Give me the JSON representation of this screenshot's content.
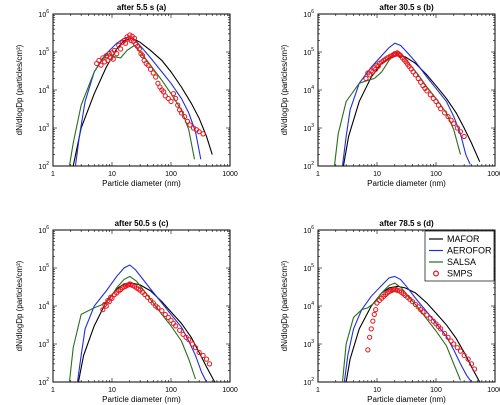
{
  "figure": {
    "xlabel": "Particle diameter (nm)",
    "ylabel": "dN/dlogDp (particles/cm³)",
    "xlim": [
      1,
      1000
    ],
    "ylim": [
      100,
      1000000
    ],
    "x_scale": "log",
    "y_scale": "log",
    "x_ticks": [
      1,
      10,
      100,
      1000
    ],
    "y_ticks": [
      2,
      3,
      4,
      5,
      6
    ],
    "colors": {
      "MAFOR": "#000000",
      "AEROFOR": "#1f2fd6",
      "SALSA": "#2a6e1e",
      "SMPS": "#e8141c"
    },
    "legend": {
      "placement": "top-right of panel (d)",
      "entries": [
        {
          "name": "MAFOR",
          "style": "line",
          "color": "#000000"
        },
        {
          "name": "AEROFOR",
          "style": "line",
          "color": "#1f2fd6"
        },
        {
          "name": "SALSA",
          "style": "line",
          "color": "#2a6e1e"
        },
        {
          "name": "SMPS",
          "style": "marker",
          "color": "#e8141c"
        }
      ]
    }
  },
  "chart_data": [
    {
      "type": "line",
      "title": "after 5.5 s (a)",
      "series": [
        {
          "name": "MAFOR",
          "x": [
            2.2,
            3,
            5,
            8,
            12,
            16,
            22,
            30,
            45,
            70,
            100,
            150,
            220,
            300,
            400,
            500
          ],
          "y": [
            100,
            1000,
            8000,
            40000,
            120000,
            200000,
            230000,
            180000,
            110000,
            60000,
            30000,
            12000,
            4500,
            1800,
            600,
            200
          ]
        },
        {
          "name": "AEROFOR",
          "x": [
            2.4,
            2.8,
            3.5,
            5,
            8,
            12,
            16,
            20,
            25,
            32,
            45,
            70,
            100,
            150,
            200,
            260,
            320
          ],
          "y": [
            100,
            600,
            5000,
            30000,
            90000,
            170000,
            230000,
            250000,
            200000,
            130000,
            70000,
            30000,
            15000,
            6000,
            2500,
            800,
            150
          ]
        },
        {
          "name": "SALSA",
          "x": [
            1.9,
            2.2,
            3,
            5,
            7,
            9,
            11,
            14,
            18,
            24,
            32,
            45,
            70,
            100,
            150,
            200,
            250
          ],
          "y": [
            100,
            400,
            4000,
            30000,
            70000,
            90000,
            75000,
            70000,
            110000,
            150000,
            90000,
            45000,
            18000,
            8000,
            3000,
            900,
            150
          ]
        },
        {
          "name": "SMPS",
          "x": [
            5.5,
            6,
            6.5,
            7,
            7.5,
            8,
            8.5,
            9,
            9.5,
            10,
            10.5,
            11,
            12,
            13,
            14,
            15,
            16,
            17,
            18,
            19,
            20,
            21,
            22,
            23,
            24,
            25,
            27,
            29,
            31,
            33,
            35,
            38,
            41,
            45,
            50,
            55,
            60,
            65,
            70,
            75,
            80,
            90,
            100,
            110,
            120,
            130,
            140,
            150,
            170,
            190,
            210,
            240,
            270,
            300,
            350
          ],
          "y": [
            50000,
            60000,
            45000,
            70000,
            55000,
            80000,
            60000,
            90000,
            70000,
            95000,
            65000,
            110000,
            90000,
            150000,
            120000,
            180000,
            200000,
            170000,
            250000,
            220000,
            280000,
            200000,
            260000,
            190000,
            230000,
            160000,
            140000,
            120000,
            90000,
            80000,
            60000,
            50000,
            45000,
            35000,
            28000,
            22000,
            15000,
            12000,
            10000,
            9000,
            7000,
            6000,
            5000,
            8000,
            6000,
            4000,
            3000,
            2500,
            2000,
            1500,
            1200,
            1000,
            900,
            800,
            700
          ]
        }
      ]
    },
    {
      "type": "line",
      "title": "after 30.5 s (b)",
      "series": [
        {
          "name": "MAFOR",
          "x": [
            2.7,
            3.3,
            5,
            8,
            12,
            16,
            22,
            30,
            45,
            70,
            100,
            150,
            220,
            300,
            400,
            550
          ],
          "y": [
            100,
            600,
            5000,
            22000,
            50000,
            70000,
            80000,
            75000,
            50000,
            25000,
            13000,
            6000,
            2500,
            1000,
            400,
            130
          ]
        },
        {
          "name": "AEROFOR",
          "x": [
            2.6,
            3,
            3.5,
            5,
            8,
            12,
            16,
            20,
            25,
            32,
            45,
            70,
            100,
            150,
            200,
            260,
            320,
            380
          ],
          "y": [
            100,
            600,
            3000,
            15000,
            40000,
            80000,
            130000,
            170000,
            150000,
            100000,
            55000,
            22000,
            11000,
            5000,
            2000,
            700,
            200,
            110
          ]
        },
        {
          "name": "SALSA",
          "x": [
            1.9,
            2.2,
            3,
            5,
            7,
            9,
            12,
            16,
            20,
            26,
            35,
            50,
            70,
            100,
            150,
            200,
            260
          ],
          "y": [
            100,
            700,
            5000,
            15000,
            18000,
            20000,
            30000,
            60000,
            100000,
            90000,
            50000,
            25000,
            12000,
            6000,
            2500,
            900,
            200
          ]
        },
        {
          "name": "SMPS",
          "x": [
            6.5,
            7,
            7.5,
            8,
            8.5,
            9,
            9.5,
            10,
            10.5,
            11,
            12,
            13,
            14,
            15,
            16,
            17,
            18,
            19,
            20,
            21,
            22,
            23,
            24,
            25,
            27,
            29,
            31,
            33,
            35,
            38,
            41,
            45,
            50,
            55,
            60,
            65,
            70,
            80,
            90,
            100,
            110,
            120,
            140,
            160,
            180,
            200,
            230,
            260,
            300
          ],
          "y": [
            20000,
            28000,
            25000,
            32000,
            30000,
            38000,
            35000,
            45000,
            42000,
            50000,
            55000,
            60000,
            65000,
            70000,
            72000,
            78000,
            80000,
            85000,
            90000,
            88000,
            95000,
            90000,
            85000,
            80000,
            70000,
            62000,
            55000,
            48000,
            42000,
            36000,
            30000,
            25000,
            20000,
            16000,
            13000,
            11000,
            9500,
            7500,
            6000,
            5000,
            4000,
            3200,
            2500,
            2000,
            1600,
            1300,
            1000,
            800,
            600
          ]
        }
      ]
    },
    {
      "type": "line",
      "title": "after 50.5 s (c)",
      "series": [
        {
          "name": "MAFOR",
          "x": [
            2.7,
            3.3,
            5,
            8,
            12,
            16,
            22,
            30,
            45,
            70,
            100,
            150,
            220,
            300,
            400,
            550
          ],
          "y": [
            100,
            500,
            3000,
            13000,
            28000,
            38000,
            40000,
            36000,
            25000,
            13000,
            7000,
            3500,
            1500,
            600,
            250,
            100
          ]
        },
        {
          "name": "AEROFOR",
          "x": [
            2.6,
            3,
            3.5,
            5,
            8,
            12,
            16,
            20,
            25,
            32,
            45,
            70,
            100,
            150,
            200,
            260,
            330,
            400
          ],
          "y": [
            100,
            500,
            2500,
            10000,
            25000,
            60000,
            100000,
            120000,
            90000,
            55000,
            28000,
            12000,
            6000,
            2800,
            1200,
            500,
            180,
            100
          ]
        },
        {
          "name": "SALSA",
          "x": [
            1.9,
            2.2,
            3,
            5,
            7,
            9,
            12,
            16,
            20,
            26,
            35,
            50,
            70,
            100,
            150,
            200,
            260
          ],
          "y": [
            100,
            800,
            6000,
            9000,
            11000,
            15000,
            30000,
            50000,
            60000,
            45000,
            25000,
            12000,
            6000,
            3000,
            1200,
            400,
            120
          ]
        },
        {
          "name": "SMPS",
          "x": [
            7,
            7.5,
            8,
            8.5,
            9,
            9.5,
            10,
            11,
            12,
            13,
            14,
            15,
            16,
            17,
            18,
            19,
            20,
            21,
            22,
            24,
            26,
            28,
            30,
            33,
            36,
            40,
            45,
            50,
            55,
            60,
            70,
            80,
            90,
            100,
            110,
            120,
            140,
            160,
            180,
            200,
            230,
            260,
            300,
            350,
            400,
            450
          ],
          "y": [
            8000,
            11000,
            10000,
            14000,
            13000,
            17000,
            16000,
            20000,
            22000,
            25000,
            27000,
            30000,
            32000,
            33000,
            35000,
            36000,
            38000,
            37000,
            35000,
            33000,
            30000,
            28000,
            26000,
            23000,
            20000,
            17000,
            14000,
            12000,
            10000,
            9000,
            7500,
            6000,
            5000,
            4200,
            3500,
            3000,
            2300,
            1800,
            1500,
            1300,
            1000,
            800,
            600,
            500,
            400,
            300
          ]
        }
      ]
    },
    {
      "type": "line",
      "title": "after 78.5 s (d)",
      "series": [
        {
          "name": "MAFOR",
          "x": [
            3,
            3.5,
            5,
            8,
            12,
            16,
            22,
            30,
            45,
            70,
            100,
            150,
            220,
            300,
            400,
            550
          ],
          "y": [
            100,
            400,
            2500,
            10000,
            22000,
            30000,
            33000,
            30000,
            22000,
            12000,
            6500,
            3200,
            1400,
            600,
            250,
            100
          ]
        },
        {
          "name": "AEROFOR",
          "x": [
            2.8,
            3.2,
            4,
            5.5,
            8,
            12,
            16,
            20,
            25,
            32,
            45,
            70,
            100,
            150,
            200,
            260,
            330,
            400
          ],
          "y": [
            100,
            500,
            2500,
            8000,
            18000,
            35000,
            55000,
            60000,
            50000,
            32000,
            16000,
            7000,
            3500,
            1600,
            700,
            300,
            150,
            100
          ]
        },
        {
          "name": "SALSA",
          "x": [
            2.6,
            3,
            4,
            5.5,
            7,
            9,
            12,
            16,
            20,
            26,
            35,
            50,
            70,
            100,
            150,
            200,
            260
          ],
          "y": [
            100,
            1000,
            5000,
            8000,
            9000,
            12000,
            22000,
            35000,
            40000,
            30000,
            17000,
            9000,
            4500,
            2200,
            900,
            300,
            110
          ]
        },
        {
          "name": "SMPS",
          "x": [
            7,
            7.5,
            8,
            8.5,
            9,
            9.5,
            10,
            11,
            12,
            13,
            14,
            15,
            16,
            17,
            18,
            19,
            20,
            21,
            22,
            24,
            26,
            28,
            30,
            33,
            36,
            40,
            45,
            50,
            55,
            60,
            70,
            80,
            90,
            100,
            110,
            120,
            140,
            160,
            180,
            200,
            230,
            260,
            300,
            350,
            400,
            450
          ],
          "y": [
            700,
            1500,
            2500,
            4000,
            6000,
            8000,
            12000,
            14000,
            16000,
            18000,
            20000,
            22000,
            24000,
            25000,
            26000,
            27000,
            28000,
            27000,
            26000,
            25000,
            23000,
            21000,
            19000,
            17000,
            15000,
            13000,
            11000,
            9500,
            8000,
            7000,
            5800,
            4800,
            4000,
            3400,
            2900,
            2500,
            1900,
            1500,
            1200,
            1000,
            800,
            650,
            500,
            400,
            300,
            220
          ]
        }
      ]
    }
  ]
}
